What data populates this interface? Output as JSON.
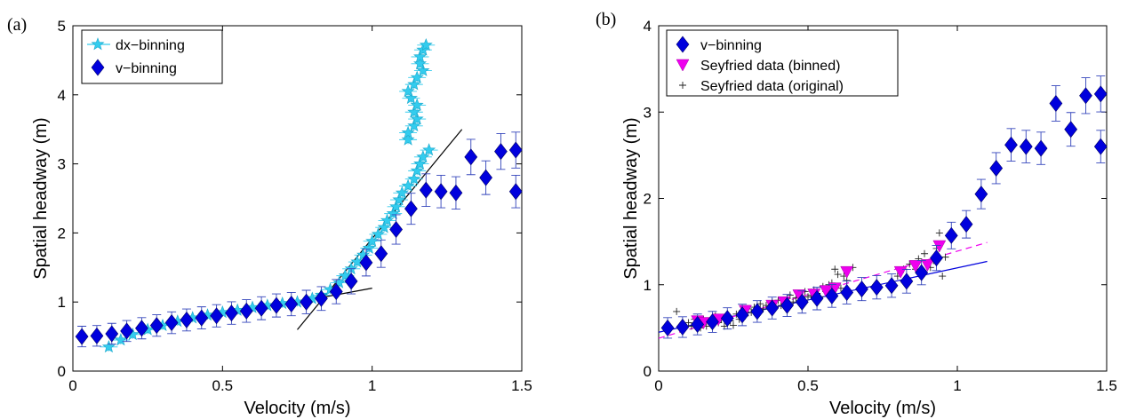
{
  "chart_data": [
    {
      "type": "scatter",
      "panel_label": "(a)",
      "xlabel": "Velocity (m/s)",
      "ylabel": "Spatial headway (m)",
      "xlim": [
        0,
        1.5
      ],
      "ylim": [
        0,
        5
      ],
      "xticks": [
        "0",
        "0.5",
        "1",
        "1.5"
      ],
      "yticks": [
        "0",
        "1",
        "2",
        "3",
        "4",
        "5"
      ],
      "legend_position": "top-left",
      "colors": {
        "dx": "#33ccee",
        "v": "#0000dd",
        "v_err": "#3344bb"
      },
      "legend": [
        "dx−binning",
        "v−binning"
      ],
      "series": [
        {
          "name": "dx−binning",
          "marker": "star",
          "points": [
            [
              0.12,
              0.35
            ],
            [
              0.16,
              0.45
            ],
            [
              0.2,
              0.53
            ],
            [
              0.25,
              0.6
            ],
            [
              0.3,
              0.66
            ],
            [
              0.35,
              0.72
            ],
            [
              0.4,
              0.77
            ],
            [
              0.45,
              0.81
            ],
            [
              0.5,
              0.85
            ],
            [
              0.55,
              0.88
            ],
            [
              0.6,
              0.92
            ],
            [
              0.65,
              0.95
            ],
            [
              0.7,
              0.98
            ],
            [
              0.75,
              1.0
            ],
            [
              0.8,
              1.05
            ],
            [
              0.83,
              1.1
            ],
            [
              0.86,
              1.18
            ],
            [
              0.89,
              1.28
            ],
            [
              0.91,
              1.38
            ],
            [
              0.93,
              1.48
            ],
            [
              0.95,
              1.58
            ],
            [
              0.97,
              1.68
            ],
            [
              0.99,
              1.78
            ],
            [
              1.0,
              1.88
            ],
            [
              1.02,
              1.98
            ],
            [
              1.04,
              2.08
            ],
            [
              1.05,
              2.18
            ],
            [
              1.07,
              2.28
            ],
            [
              1.08,
              2.38
            ],
            [
              1.09,
              2.48
            ],
            [
              1.1,
              2.58
            ],
            [
              1.12,
              2.68
            ],
            [
              1.14,
              2.78
            ],
            [
              1.15,
              2.9
            ],
            [
              1.16,
              3.0
            ],
            [
              1.17,
              3.1
            ],
            [
              1.19,
              3.2
            ],
            [
              1.12,
              3.35
            ],
            [
              1.12,
              3.45
            ],
            [
              1.14,
              3.55
            ],
            [
              1.15,
              3.65
            ],
            [
              1.14,
              3.75
            ],
            [
              1.15,
              3.85
            ],
            [
              1.13,
              3.95
            ],
            [
              1.12,
              4.05
            ],
            [
              1.14,
              4.15
            ],
            [
              1.15,
              4.25
            ],
            [
              1.17,
              4.35
            ],
            [
              1.16,
              4.45
            ],
            [
              1.16,
              4.55
            ],
            [
              1.17,
              4.65
            ],
            [
              1.18,
              4.72
            ]
          ]
        },
        {
          "name": "v−binning",
          "marker": "diamond",
          "points": [
            [
              0.03,
              0.5
            ],
            [
              0.08,
              0.51
            ],
            [
              0.13,
              0.54
            ],
            [
              0.18,
              0.58
            ],
            [
              0.23,
              0.62
            ],
            [
              0.28,
              0.66
            ],
            [
              0.33,
              0.7
            ],
            [
              0.38,
              0.74
            ],
            [
              0.43,
              0.77
            ],
            [
              0.48,
              0.8
            ],
            [
              0.53,
              0.84
            ],
            [
              0.58,
              0.87
            ],
            [
              0.63,
              0.91
            ],
            [
              0.68,
              0.95
            ],
            [
              0.73,
              0.97
            ],
            [
              0.78,
              1.0
            ],
            [
              0.83,
              1.05
            ],
            [
              0.88,
              1.15
            ],
            [
              0.93,
              1.3
            ],
            [
              0.98,
              1.57
            ],
            [
              1.03,
              1.7
            ],
            [
              1.08,
              2.05
            ],
            [
              1.13,
              2.35
            ],
            [
              1.18,
              2.62
            ],
            [
              1.23,
              2.6
            ],
            [
              1.28,
              2.58
            ],
            [
              1.33,
              3.1
            ],
            [
              1.38,
              2.8
            ],
            [
              1.43,
              3.18
            ],
            [
              1.48,
              3.2
            ],
            [
              1.48,
              2.6
            ]
          ]
        }
      ],
      "fit_lines": [
        {
          "from": [
            0.75,
            1.0
          ],
          "to": [
            1.0,
            1.2
          ]
        },
        {
          "from": [
            0.75,
            0.6
          ],
          "to": [
            1.3,
            3.5
          ]
        }
      ]
    },
    {
      "type": "scatter",
      "panel_label": "(b)",
      "xlabel": "Velocity (m/s)",
      "ylabel": "Spatial headway (m)",
      "xlim": [
        0,
        1.5
      ],
      "ylim": [
        0,
        4
      ],
      "xticks": [
        "0",
        "0.5",
        "1",
        "1.5"
      ],
      "yticks": [
        "0",
        "1",
        "2",
        "3",
        "4"
      ],
      "legend_position": "top-left",
      "colors": {
        "v": "#0000dd",
        "v_err": "#3344bb",
        "binned": "#ee00ee",
        "original": "#222222"
      },
      "legend": [
        "v−binning",
        "Seyfried data (binned)",
        "Seyfried data (original)"
      ],
      "series": [
        {
          "name": "v−binning",
          "marker": "diamond",
          "points": [
            [
              0.03,
              0.5
            ],
            [
              0.08,
              0.51
            ],
            [
              0.13,
              0.54
            ],
            [
              0.18,
              0.57
            ],
            [
              0.23,
              0.61
            ],
            [
              0.28,
              0.65
            ],
            [
              0.33,
              0.69
            ],
            [
              0.38,
              0.73
            ],
            [
              0.43,
              0.76
            ],
            [
              0.48,
              0.8
            ],
            [
              0.53,
              0.84
            ],
            [
              0.58,
              0.87
            ],
            [
              0.63,
              0.91
            ],
            [
              0.68,
              0.95
            ],
            [
              0.73,
              0.97
            ],
            [
              0.78,
              0.99
            ],
            [
              0.83,
              1.04
            ],
            [
              0.88,
              1.14
            ],
            [
              0.93,
              1.31
            ],
            [
              0.98,
              1.57
            ],
            [
              1.03,
              1.7
            ],
            [
              1.08,
              2.05
            ],
            [
              1.13,
              2.35
            ],
            [
              1.18,
              2.62
            ],
            [
              1.23,
              2.6
            ],
            [
              1.28,
              2.58
            ],
            [
              1.33,
              3.1
            ],
            [
              1.38,
              2.8
            ],
            [
              1.43,
              3.19
            ],
            [
              1.48,
              3.21
            ],
            [
              1.48,
              2.6
            ]
          ]
        },
        {
          "name": "Seyfried data (binned)",
          "marker": "triangle-down",
          "points": [
            [
              0.13,
              0.58
            ],
            [
              0.15,
              0.56
            ],
            [
              0.2,
              0.6
            ],
            [
              0.29,
              0.7
            ],
            [
              0.38,
              0.76
            ],
            [
              0.42,
              0.8
            ],
            [
              0.47,
              0.88
            ],
            [
              0.52,
              0.89
            ],
            [
              0.56,
              0.93
            ],
            [
              0.59,
              0.96
            ],
            [
              0.63,
              1.15
            ],
            [
              0.81,
              1.15
            ],
            [
              0.86,
              1.22
            ],
            [
              0.9,
              1.23
            ],
            [
              0.94,
              1.45
            ]
          ]
        },
        {
          "name": "Seyfried data (original)",
          "marker": "plus",
          "points": [
            [
              0.06,
              0.69
            ],
            [
              0.1,
              0.56
            ],
            [
              0.11,
              0.52
            ],
            [
              0.12,
              0.6
            ],
            [
              0.13,
              0.55
            ],
            [
              0.14,
              0.5
            ],
            [
              0.15,
              0.6
            ],
            [
              0.16,
              0.52
            ],
            [
              0.17,
              0.58
            ],
            [
              0.18,
              0.55
            ],
            [
              0.19,
              0.64
            ],
            [
              0.2,
              0.56
            ],
            [
              0.21,
              0.6
            ],
            [
              0.22,
              0.52
            ],
            [
              0.23,
              0.63
            ],
            [
              0.24,
              0.58
            ],
            [
              0.25,
              0.53
            ],
            [
              0.26,
              0.66
            ],
            [
              0.27,
              0.6
            ],
            [
              0.28,
              0.7
            ],
            [
              0.29,
              0.64
            ],
            [
              0.3,
              0.72
            ],
            [
              0.31,
              0.68
            ],
            [
              0.32,
              0.74
            ],
            [
              0.33,
              0.7
            ],
            [
              0.34,
              0.78
            ],
            [
              0.35,
              0.72
            ],
            [
              0.36,
              0.76
            ],
            [
              0.37,
              0.72
            ],
            [
              0.38,
              0.8
            ],
            [
              0.39,
              0.74
            ],
            [
              0.4,
              0.82
            ],
            [
              0.41,
              0.76
            ],
            [
              0.42,
              0.78
            ],
            [
              0.43,
              0.84
            ],
            [
              0.44,
              0.88
            ],
            [
              0.45,
              0.8
            ],
            [
              0.46,
              0.85
            ],
            [
              0.47,
              0.9
            ],
            [
              0.48,
              0.82
            ],
            [
              0.49,
              0.92
            ],
            [
              0.5,
              0.86
            ],
            [
              0.51,
              0.88
            ],
            [
              0.52,
              0.94
            ],
            [
              0.53,
              0.9
            ],
            [
              0.54,
              0.86
            ],
            [
              0.55,
              0.98
            ],
            [
              0.56,
              0.92
            ],
            [
              0.57,
              1.0
            ],
            [
              0.58,
              1.02
            ],
            [
              0.59,
              1.18
            ],
            [
              0.6,
              1.12
            ],
            [
              0.61,
              0.96
            ],
            [
              0.62,
              1.1
            ],
            [
              0.63,
              1.05
            ],
            [
              0.65,
              1.2
            ],
            [
              0.8,
              1.1
            ],
            [
              0.82,
              1.18
            ],
            [
              0.84,
              1.24
            ],
            [
              0.86,
              1.18
            ],
            [
              0.87,
              1.3
            ],
            [
              0.88,
              1.12
            ],
            [
              0.89,
              1.36
            ],
            [
              0.9,
              1.24
            ],
            [
              0.91,
              1.2
            ],
            [
              0.92,
              1.28
            ],
            [
              0.93,
              1.42
            ],
            [
              0.94,
              1.6
            ],
            [
              0.95,
              1.1
            ],
            [
              0.96,
              1.32
            ]
          ]
        }
      ],
      "fit_lines": [
        {
          "color": "#0000dd",
          "dash": false,
          "from": [
            0.0,
            0.45
          ],
          "to": [
            1.1,
            1.27
          ]
        },
        {
          "color": "#ee00ee",
          "dash": true,
          "from": [
            0.0,
            0.38
          ],
          "to": [
            1.1,
            1.49
          ]
        }
      ]
    }
  ]
}
